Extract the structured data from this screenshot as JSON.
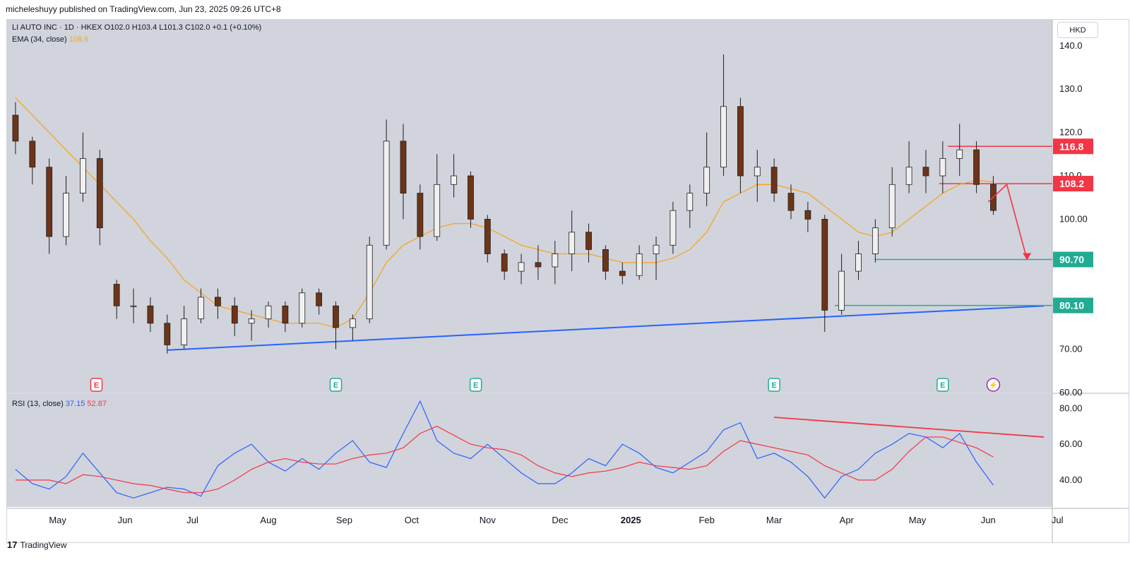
{
  "header": {
    "published": "micheleshuyy published on TradingView.com, Jun 23, 2025 09:26 UTC+8"
  },
  "legend": {
    "symbol_line": "LI AUTO INC · 1D · HKEX  O102.0  H103.4  L101.3  C102.0  +0.1 (+0.10%)",
    "ema_label": "EMA (34, close)",
    "ema_value": "108.6",
    "rsi_label": "RSI (13, close)",
    "rsi_value": "37.15",
    "rsi_ma_value": "52.87"
  },
  "currency": "HKD",
  "footer": {
    "brand": "TradingView",
    "logo": "17"
  },
  "colors": {
    "up": "#f0f0f0",
    "down": "#6e3418",
    "ema": "#f5a623",
    "support": "#2962ff",
    "rsi": "#2962ff",
    "rsi_ma": "#f23645",
    "resistance": "#f23645",
    "target": "#22ab94",
    "chart_bg": "#d1d4dc"
  },
  "chart_data": {
    "type": "candlestick",
    "title": "LI AUTO INC · 1D · HKEX",
    "price_axis": {
      "ylim": [
        60,
        146
      ],
      "ticks": [
        "140.0",
        "130.0",
        "120.0",
        "110.0",
        "100.00",
        "70.00",
        "60.00"
      ]
    },
    "time_axis": {
      "range": [
        0,
        62
      ],
      "ticks": [
        {
          "label": "May",
          "week": 3
        },
        {
          "label": "Jun",
          "week": 7
        },
        {
          "label": "Jul",
          "week": 11
        },
        {
          "label": "Aug",
          "week": 15.5
        },
        {
          "label": "Sep",
          "week": 20
        },
        {
          "label": "Oct",
          "week": 24
        },
        {
          "label": "Nov",
          "week": 28.5
        },
        {
          "label": "Dec",
          "week": 32.8
        },
        {
          "label": "2025",
          "week": 37
        },
        {
          "label": "Feb",
          "week": 41.5
        },
        {
          "label": "Mar",
          "week": 45.5
        },
        {
          "label": "Apr",
          "week": 49.8
        },
        {
          "label": "May",
          "week": 54
        },
        {
          "label": "Jun",
          "week": 58.2
        },
        {
          "label": "Jul",
          "week": 62.3
        }
      ]
    },
    "candles_weekly": [
      {
        "o": 124,
        "h": 127,
        "l": 115,
        "c": 118
      },
      {
        "o": 118,
        "h": 119,
        "l": 108,
        "c": 112
      },
      {
        "o": 112,
        "h": 114,
        "l": 92,
        "c": 96
      },
      {
        "o": 96,
        "h": 110,
        "l": 94,
        "c": 106
      },
      {
        "o": 106,
        "h": 120,
        "l": 104,
        "c": 114
      },
      {
        "o": 114,
        "h": 116,
        "l": 94,
        "c": 98
      },
      {
        "o": 85,
        "h": 86,
        "l": 77,
        "c": 80
      },
      {
        "o": 80,
        "h": 84,
        "l": 76,
        "c": 80
      },
      {
        "o": 80,
        "h": 82,
        "l": 74,
        "c": 76
      },
      {
        "o": 76,
        "h": 78,
        "l": 69,
        "c": 71
      },
      {
        "o": 71,
        "h": 80,
        "l": 70,
        "c": 77
      },
      {
        "o": 77,
        "h": 84,
        "l": 76,
        "c": 82
      },
      {
        "o": 82,
        "h": 84,
        "l": 77,
        "c": 80
      },
      {
        "o": 80,
        "h": 82,
        "l": 73,
        "c": 76
      },
      {
        "o": 76,
        "h": 79,
        "l": 72,
        "c": 77
      },
      {
        "o": 77,
        "h": 81,
        "l": 75,
        "c": 80
      },
      {
        "o": 80,
        "h": 81,
        "l": 74,
        "c": 76
      },
      {
        "o": 76,
        "h": 84,
        "l": 75,
        "c": 83
      },
      {
        "o": 83,
        "h": 84,
        "l": 78,
        "c": 80
      },
      {
        "o": 80,
        "h": 81,
        "l": 70,
        "c": 75
      },
      {
        "o": 75,
        "h": 78,
        "l": 72,
        "c": 77
      },
      {
        "o": 77,
        "h": 96,
        "l": 76,
        "c": 94
      },
      {
        "o": 94,
        "h": 123,
        "l": 93,
        "c": 118
      },
      {
        "o": 118,
        "h": 122,
        "l": 100,
        "c": 106
      },
      {
        "o": 106,
        "h": 108,
        "l": 93,
        "c": 96
      },
      {
        "o": 96,
        "h": 115,
        "l": 95,
        "c": 108
      },
      {
        "o": 108,
        "h": 115,
        "l": 105,
        "c": 110
      },
      {
        "o": 110,
        "h": 111,
        "l": 98,
        "c": 100
      },
      {
        "o": 100,
        "h": 101,
        "l": 90,
        "c": 92
      },
      {
        "o": 92,
        "h": 93,
        "l": 86,
        "c": 88
      },
      {
        "o": 88,
        "h": 92,
        "l": 85,
        "c": 90
      },
      {
        "o": 90,
        "h": 94,
        "l": 86,
        "c": 89
      },
      {
        "o": 89,
        "h": 95,
        "l": 85,
        "c": 92
      },
      {
        "o": 92,
        "h": 102,
        "l": 88,
        "c": 97
      },
      {
        "o": 97,
        "h": 99,
        "l": 90,
        "c": 93
      },
      {
        "o": 93,
        "h": 94,
        "l": 86,
        "c": 88
      },
      {
        "o": 88,
        "h": 90,
        "l": 85,
        "c": 87
      },
      {
        "o": 87,
        "h": 94,
        "l": 86,
        "c": 92
      },
      {
        "o": 92,
        "h": 96,
        "l": 86,
        "c": 94
      },
      {
        "o": 94,
        "h": 104,
        "l": 92,
        "c": 102
      },
      {
        "o": 102,
        "h": 108,
        "l": 98,
        "c": 106
      },
      {
        "o": 106,
        "h": 120,
        "l": 103,
        "c": 112
      },
      {
        "o": 112,
        "h": 138,
        "l": 110,
        "c": 126
      },
      {
        "o": 126,
        "h": 128,
        "l": 106,
        "c": 110
      },
      {
        "o": 110,
        "h": 116,
        "l": 104,
        "c": 112
      },
      {
        "o": 112,
        "h": 114,
        "l": 104,
        "c": 106
      },
      {
        "o": 106,
        "h": 108,
        "l": 100,
        "c": 102
      },
      {
        "o": 102,
        "h": 104,
        "l": 97,
        "c": 100
      },
      {
        "o": 100,
        "h": 101,
        "l": 74,
        "c": 79
      },
      {
        "o": 79,
        "h": 92,
        "l": 78,
        "c": 88
      },
      {
        "o": 88,
        "h": 95,
        "l": 86,
        "c": 92
      },
      {
        "o": 92,
        "h": 100,
        "l": 90,
        "c": 98
      },
      {
        "o": 98,
        "h": 112,
        "l": 96,
        "c": 108
      },
      {
        "o": 108,
        "h": 118,
        "l": 106,
        "c": 112
      },
      {
        "o": 112,
        "h": 116,
        "l": 106,
        "c": 110
      },
      {
        "o": 110,
        "h": 118,
        "l": 106,
        "c": 114
      },
      {
        "o": 114,
        "h": 122,
        "l": 110,
        "c": 116
      },
      {
        "o": 116,
        "h": 118,
        "l": 106,
        "c": 108
      },
      {
        "o": 108,
        "h": 110,
        "l": 101,
        "c": 102
      }
    ],
    "ema_34": [
      128,
      124,
      120,
      116,
      112,
      108,
      104,
      100,
      95,
      91,
      86,
      83,
      80,
      79,
      78,
      77,
      76,
      76,
      76,
      75,
      77,
      83,
      90,
      94,
      96,
      98,
      99,
      99,
      98,
      96,
      94,
      93,
      92,
      92,
      92,
      91,
      90,
      90,
      90,
      91,
      93,
      97,
      104,
      106,
      108,
      108,
      107,
      106,
      103,
      100,
      97,
      96,
      97,
      100,
      103,
      106,
      108,
      109,
      108.6
    ],
    "levels": [
      {
        "label": "116.8",
        "value": 116.8,
        "color": "#f23645",
        "from_week": 55.8
      },
      {
        "label": "108.2",
        "value": 108.2,
        "color": "#f23645",
        "from_week": 55.3
      },
      {
        "label": "90.70",
        "value": 90.7,
        "color": "#22ab94",
        "from_week": 51.5
      },
      {
        "label": "80.10",
        "value": 80.1,
        "color": "#22ab94",
        "from_week": 49.1
      }
    ],
    "support_line": {
      "from": {
        "week": 9.5,
        "price": 69.8
      },
      "to": {
        "week": 61.5,
        "price": 80.0
      }
    },
    "projection": [
      {
        "week": 58.2,
        "price": 104
      },
      {
        "week": 59.3,
        "price": 108
      },
      {
        "week": 60.5,
        "price": 90.7
      }
    ],
    "events": [
      {
        "label": "E",
        "week": 5.3,
        "kind": "earnings-red"
      },
      {
        "label": "E",
        "week": 19.5,
        "kind": "earnings"
      },
      {
        "label": "E",
        "week": 27.8,
        "kind": "earnings"
      },
      {
        "label": "E",
        "week": 45.5,
        "kind": "earnings"
      },
      {
        "label": "E",
        "week": 55.5,
        "kind": "earnings"
      },
      {
        "label": "⚡",
        "week": 58.5,
        "kind": "dividend"
      }
    ],
    "rsi": {
      "period": 13,
      "ylim": [
        25,
        88
      ],
      "ticks": [
        "80.00",
        "60.00",
        "40.00"
      ],
      "values": [
        46,
        38,
        35,
        42,
        55,
        44,
        33,
        30,
        33,
        36,
        35,
        31,
        48,
        55,
        60,
        50,
        45,
        52,
        46,
        55,
        62,
        50,
        47,
        66,
        84,
        62,
        55,
        52,
        60,
        52,
        44,
        38,
        38,
        44,
        52,
        48,
        60,
        55,
        47,
        44,
        50,
        56,
        68,
        72,
        52,
        55,
        50,
        42,
        30,
        42,
        46,
        55,
        60,
        66,
        64,
        58,
        66,
        50,
        37.15
      ],
      "ma": [
        40,
        40,
        40,
        38,
        43,
        42,
        40,
        38,
        37,
        35,
        33,
        33,
        35,
        40,
        46,
        50,
        52,
        50,
        49,
        49,
        52,
        54,
        55,
        58,
        66,
        70,
        65,
        60,
        58,
        57,
        54,
        48,
        44,
        42,
        44,
        45,
        47,
        50,
        48,
        47,
        46,
        48,
        56,
        62,
        60,
        58,
        56,
        54,
        48,
        44,
        40,
        40,
        46,
        56,
        64,
        64,
        61,
        58,
        52.87
      ]
    },
    "rsi_divergence": {
      "from": {
        "week": 45.5,
        "value": 75
      },
      "to": {
        "week": 61.5,
        "value": 64
      }
    }
  }
}
